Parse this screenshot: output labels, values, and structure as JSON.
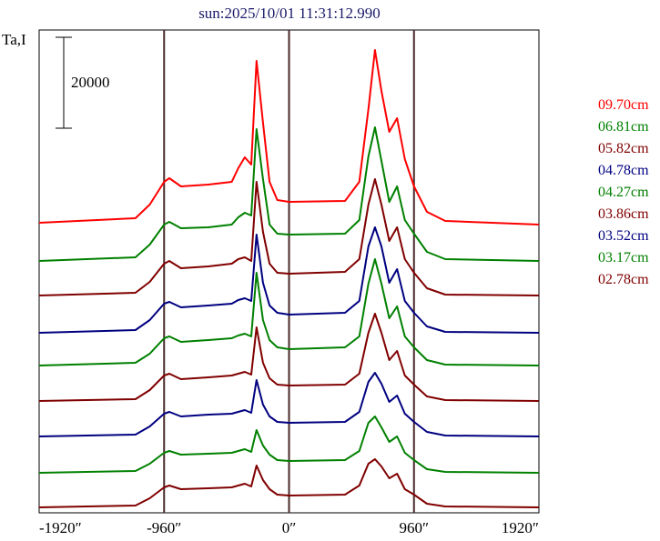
{
  "chart_data": {
    "type": "line",
    "title": "sun:2025/10/01 11:31:12.990",
    "ylabel": "Ta,I",
    "xlabel": "",
    "xlim": [
      -1920,
      1920
    ],
    "ylim": [
      0,
      106200
    ],
    "x_ticks": [
      -1920,
      -960,
      0,
      960,
      1920
    ],
    "x_tick_labels": [
      "-1920″",
      "-960″",
      "0″",
      "960″",
      "1920″"
    ],
    "vertical_markers": [
      -960,
      0,
      960
    ],
    "scale_bar": {
      "value": 20000,
      "label": "20000"
    },
    "grid": false,
    "legend_placement": "right",
    "x": [
      -1920,
      -1180,
      -1070,
      -960,
      -920,
      -830,
      -620,
      -440,
      -390,
      -340,
      -290,
      -250,
      -200,
      -150,
      -90,
      0,
      430,
      540,
      610,
      660,
      710,
      770,
      830,
      890,
      960,
      1060,
      1200,
      1920
    ],
    "series": [
      {
        "name": "09.70cm",
        "color": "#ff0000",
        "offset": 63800,
        "values": [
          0,
          1000,
          4000,
          9000,
          9800,
          8000,
          8400,
          9000,
          12000,
          14400,
          12800,
          35600,
          22000,
          9000,
          5000,
          4600,
          4800,
          9000,
          25000,
          38000,
          29000,
          20000,
          23000,
          14000,
          8000,
          2400,
          400,
          -400
        ]
      },
      {
        "name": "06.81cm",
        "color": "#008000",
        "offset": 55400,
        "values": [
          0,
          800,
          3600,
          8000,
          8600,
          7200,
          7400,
          8000,
          9600,
          10600,
          10000,
          29000,
          18000,
          8000,
          6000,
          5800,
          6000,
          9000,
          23000,
          29400,
          22000,
          13000,
          16400,
          9000,
          6000,
          2000,
          400,
          0
        ]
      },
      {
        "name": "05.82cm",
        "color": "#800000",
        "offset": 47800,
        "values": [
          0,
          600,
          3000,
          7000,
          7600,
          6000,
          6400,
          7000,
          8000,
          8400,
          7600,
          25000,
          14000,
          7000,
          5000,
          4800,
          5200,
          8000,
          20000,
          25600,
          20000,
          12000,
          15000,
          8000,
          5000,
          1600,
          200,
          0
        ]
      },
      {
        "name": "04.78cm",
        "color": "#000080",
        "offset": 39600,
        "values": [
          0,
          600,
          2800,
          6400,
          6800,
          5600,
          6000,
          6400,
          7200,
          7600,
          7000,
          21600,
          11000,
          6000,
          4400,
          4000,
          4400,
          7000,
          19000,
          23200,
          19000,
          11000,
          14000,
          7000,
          4400,
          1400,
          200,
          0
        ]
      },
      {
        "name": "04.27cm",
        "color": "#008000",
        "offset": 32400,
        "values": [
          0,
          600,
          2600,
          6000,
          6400,
          5200,
          5600,
          6000,
          6600,
          7000,
          6400,
          20400,
          10000,
          5600,
          4000,
          3600,
          4000,
          6400,
          18000,
          23400,
          18000,
          10400,
          13000,
          6400,
          4000,
          1200,
          200,
          0
        ]
      },
      {
        "name": "03.86cm",
        "color": "#800000",
        "offset": 24600,
        "values": [
          0,
          400,
          2400,
          5600,
          6000,
          4800,
          5200,
          5600,
          6000,
          6400,
          5800,
          16200,
          8400,
          5000,
          3600,
          3400,
          3600,
          6000,
          15000,
          19200,
          15000,
          9000,
          11000,
          5600,
          3600,
          1000,
          200,
          0
        ]
      },
      {
        "name": "03.52cm",
        "color": "#000080",
        "offset": 16800,
        "values": [
          0,
          400,
          2200,
          5000,
          5400,
          4400,
          4800,
          5000,
          5400,
          5800,
          5200,
          12400,
          7000,
          4400,
          3200,
          3000,
          3200,
          5400,
          12000,
          14000,
          11600,
          7600,
          9000,
          5000,
          3200,
          1000,
          200,
          0
        ]
      },
      {
        "name": "03.17cm",
        "color": "#008000",
        "offset": 8800,
        "values": [
          0,
          400,
          2000,
          4400,
          4800,
          4000,
          4200,
          4400,
          4800,
          5200,
          4600,
          9400,
          6000,
          4000,
          2800,
          2600,
          2800,
          4800,
          11000,
          12400,
          10000,
          6800,
          8000,
          4400,
          2800,
          800,
          200,
          0
        ]
      },
      {
        "name": "02.78cm",
        "color": "#800000",
        "offset": 1200,
        "values": [
          0,
          400,
          2000,
          4400,
          4800,
          4000,
          4200,
          4400,
          4800,
          5200,
          4600,
          9200,
          6000,
          4000,
          2800,
          2600,
          2800,
          4800,
          9600,
          10600,
          9000,
          6400,
          7400,
          4000,
          2800,
          800,
          200,
          0
        ]
      }
    ]
  }
}
